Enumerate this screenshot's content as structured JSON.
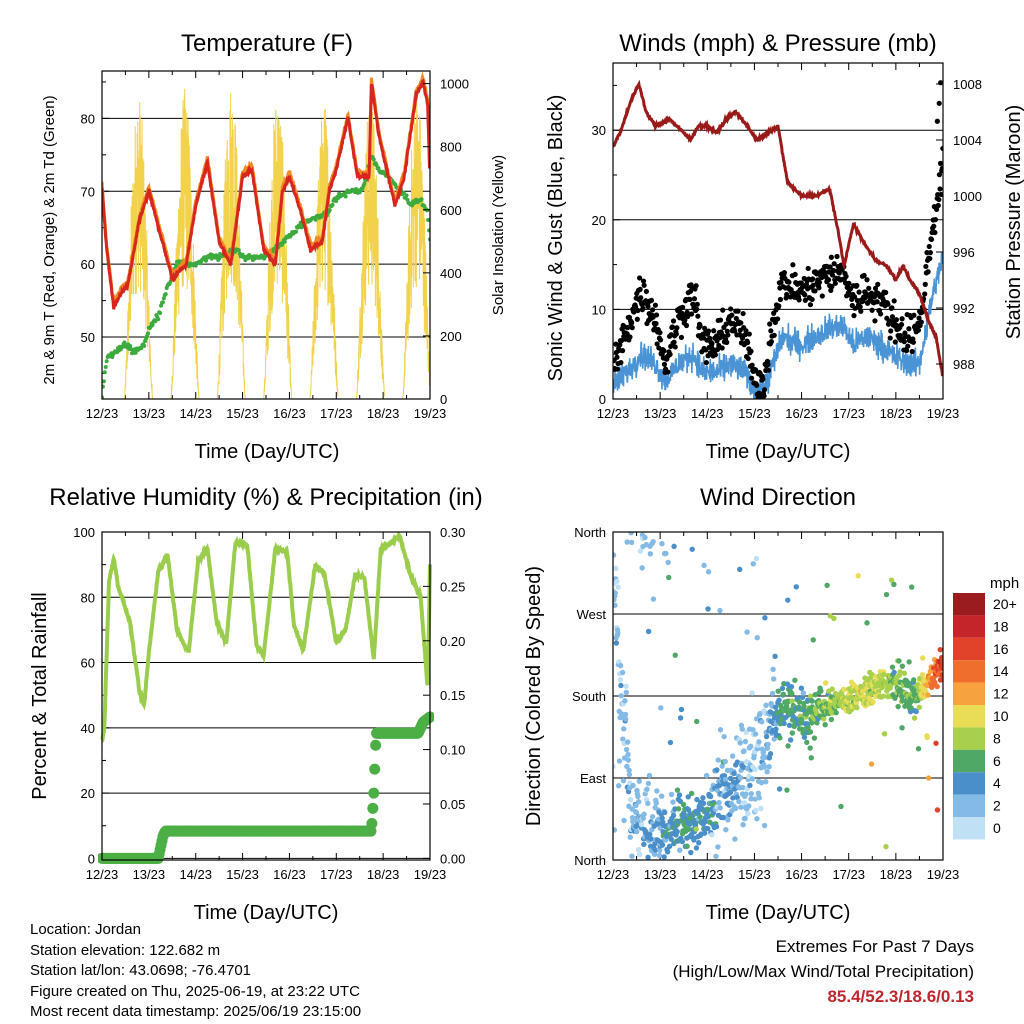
{
  "colors": {
    "temp_2m": "#d7261e",
    "temp_9m": "#f08a24",
    "dewpoint": "#3daa3d",
    "solar": "#f2d24a",
    "wind": "#4a93d4",
    "gust": "#000000",
    "pressure": "#9a1a1a",
    "rh": "#9acd4c",
    "precip": "#4caf45",
    "extremes": "#c0262d"
  },
  "x_tick_labels": [
    "12/23",
    "13/23",
    "14/23",
    "15/23",
    "16/23",
    "17/23",
    "18/23",
    "19/23"
  ],
  "x_label": "Time (Day/UTC)",
  "info": {
    "location": "Location: Jordan",
    "elevation": "Station elevation: 122.682 m",
    "latlon": "Station lat/lon: 43.0698; -76.4701",
    "created": "Figure created on Thu, 2025-06-19, at 23:22 UTC",
    "recent": "Most recent data timestamp: 2025/06/19 23:15:00"
  },
  "extremes": {
    "title": "Extremes For Past 7 Days",
    "subtitle": "(High/Low/Max Wind/Total Precipitation)",
    "values": "85.4/52.3/18.6/0.13"
  },
  "chart_data": [
    {
      "type": "line",
      "title": "Temperature (F)",
      "xlabel": "Time (Day/UTC)",
      "ylabel": "2m & 9m T (Red, Orange) & 2m Td (Green)",
      "y2label": "Solar Insolation (Yellow)",
      "xlim": [
        12,
        19
      ],
      "ylim": [
        41.5,
        86.5
      ],
      "yticks": [
        50,
        60,
        70,
        80
      ],
      "y2lim": [
        0,
        1040
      ],
      "y2ticks": [
        0,
        200,
        400,
        600,
        800,
        1000
      ],
      "grid": true,
      "series": [
        {
          "key": "temp",
          "x": [
            12.0,
            12.1,
            12.25,
            12.4,
            12.55,
            12.8,
            13.0,
            13.25,
            13.5,
            13.8,
            14.0,
            14.25,
            14.5,
            14.75,
            15.0,
            15.2,
            15.45,
            15.7,
            15.85,
            16.0,
            16.25,
            16.45,
            16.7,
            16.85,
            17.0,
            17.25,
            17.45,
            17.7,
            17.75,
            17.9,
            18.0,
            18.25,
            18.45,
            18.7,
            18.85,
            18.95,
            19.0
          ],
          "y": [
            70.5,
            62,
            54,
            56,
            57,
            66,
            70,
            64,
            58,
            60,
            68,
            74,
            63,
            60,
            72,
            73,
            62,
            60,
            70,
            72,
            67,
            62,
            63,
            70,
            73,
            80,
            72,
            72,
            85,
            78,
            75,
            68,
            72,
            83,
            85,
            82,
            71
          ]
        },
        {
          "key": "dewpoint",
          "x": [
            12.0,
            12.1,
            12.3,
            12.5,
            12.7,
            12.9,
            13.0,
            13.2,
            13.4,
            13.6,
            14.0,
            14.3,
            14.5,
            14.9,
            15.0,
            15.4,
            15.7,
            16.0,
            16.4,
            16.8,
            17.0,
            17.3,
            17.5,
            17.6,
            17.75,
            17.9,
            18.1,
            18.4,
            18.6,
            18.8,
            18.95,
            19.0
          ],
          "y": [
            42,
            47,
            48,
            49,
            48,
            49,
            51,
            53,
            57,
            60,
            60,
            61,
            61,
            62,
            61,
            61,
            62,
            64,
            66,
            67,
            69,
            70,
            70,
            71,
            75,
            73,
            72,
            70,
            68,
            69,
            67,
            63
          ]
        },
        {
          "key": "solar",
          "peaks_x": [
            12.78,
            13.77,
            14.76,
            15.75,
            16.74,
            17.73,
            18.72
          ],
          "peaks_y": [
            980,
            990,
            1030,
            1000,
            950,
            980,
            1000
          ]
        }
      ]
    },
    {
      "type": "scatter",
      "title": "Winds (mph) & Pressure (mb)",
      "xlabel": "Time (Day/UTC)",
      "ylabel": "Sonic Wind & Gust (Blue, Black)",
      "y2label": "Station Pressure (Maroon)",
      "xlim": [
        12,
        19
      ],
      "ylim": [
        0,
        37.5
      ],
      "yticks": [
        0,
        10,
        20,
        30
      ],
      "y2lim": [
        985.5,
        1009.5
      ],
      "y2ticks": [
        988,
        992,
        996,
        1000,
        1004,
        1008
      ],
      "grid": true,
      "series": [
        {
          "key": "pressure",
          "x": [
            12.0,
            12.15,
            12.4,
            12.55,
            12.7,
            12.9,
            13.2,
            13.5,
            13.65,
            13.8,
            14.0,
            14.2,
            14.4,
            14.6,
            14.85,
            15.05,
            15.3,
            15.5,
            15.7,
            16.0,
            16.3,
            16.6,
            16.8,
            16.9,
            17.1,
            17.35,
            17.55,
            17.8,
            18.0,
            18.15,
            18.3,
            18.5,
            18.7,
            18.85,
            19.0
          ],
          "y": [
            1003.5,
            1004.5,
            1007,
            1008,
            1006,
            1005,
            1005.5,
            1004.5,
            1004,
            1005,
            1005,
            1004.5,
            1005.5,
            1006,
            1005,
            1004,
            1004.5,
            1005,
            1001,
            1000,
            1000,
            1000.5,
            997,
            995,
            998,
            996.5,
            995.5,
            995,
            994,
            995,
            994,
            993,
            991,
            990,
            987
          ]
        },
        {
          "key": "wind",
          "x": [
            12.0,
            12.3,
            12.6,
            12.9,
            13.1,
            13.4,
            13.7,
            13.9,
            14.2,
            14.5,
            14.8,
            15.0,
            15.2,
            15.4,
            15.6,
            16.0,
            16.3,
            16.6,
            16.9,
            17.1,
            17.4,
            17.7,
            17.9,
            18.2,
            18.5,
            18.8,
            19.0
          ],
          "y": [
            1.5,
            3,
            5,
            4,
            2,
            4,
            5,
            3,
            3,
            4,
            3,
            1,
            1,
            4,
            7,
            6,
            7,
            8,
            8,
            6,
            7,
            6,
            5,
            4,
            4,
            12,
            16
          ]
        },
        {
          "key": "gust",
          "x": [
            12.0,
            12.3,
            12.6,
            12.9,
            13.1,
            13.4,
            13.7,
            13.9,
            14.2,
            14.5,
            14.8,
            15.0,
            15.2,
            15.4,
            15.6,
            16.0,
            16.3,
            16.6,
            16.9,
            17.1,
            17.4,
            17.7,
            17.9,
            18.2,
            18.5,
            18.8,
            19.0
          ],
          "y": [
            3,
            8,
            12,
            9,
            4,
            9,
            12,
            6,
            6,
            9,
            7,
            2,
            2,
            9,
            13,
            12,
            13,
            14,
            14,
            11,
            12,
            11,
            9,
            7,
            8,
            20,
            26
          ]
        }
      ]
    },
    {
      "type": "line",
      "title": "Relative Humidity (%) & Precipitation (in)",
      "xlabel": "Time (Day/UTC)",
      "ylabel": "Percent & Total Rainfall",
      "xlim": [
        12,
        19
      ],
      "ylim": [
        -0.5,
        100
      ],
      "yticks": [
        0,
        20,
        40,
        60,
        80,
        100
      ],
      "y2lim": [
        -0.0015,
        0.3
      ],
      "y2ticks": [
        0.0,
        0.05,
        0.1,
        0.15,
        0.2,
        0.25,
        0.3
      ],
      "grid": true,
      "series": [
        {
          "key": "rh",
          "x": [
            12.0,
            12.05,
            12.15,
            12.25,
            12.35,
            12.45,
            12.6,
            12.8,
            12.9,
            13.0,
            13.2,
            13.4,
            13.6,
            13.85,
            14.05,
            14.25,
            14.45,
            14.65,
            14.85,
            15.1,
            15.3,
            15.45,
            15.7,
            15.95,
            16.1,
            16.3,
            16.55,
            16.75,
            17.0,
            17.2,
            17.4,
            17.6,
            17.8,
            17.95,
            18.2,
            18.35,
            18.6,
            18.8,
            18.95,
            19.0
          ],
          "y": [
            36,
            40,
            85,
            92,
            83,
            79,
            72,
            51,
            47,
            63,
            88,
            93,
            70,
            63,
            91,
            95,
            72,
            66,
            97,
            96,
            65,
            62,
            95,
            94,
            71,
            64,
            90,
            87,
            66,
            70,
            87,
            86,
            61,
            95,
            97,
            99,
            86,
            80,
            52,
            90
          ]
        },
        {
          "key": "precip",
          "x": [
            12.0,
            13.2,
            13.3,
            13.35,
            17.75,
            17.8,
            17.85,
            18.75,
            18.8,
            18.85,
            19.0
          ],
          "y": [
            0.0,
            0.0,
            0.02,
            0.025,
            0.025,
            0.06,
            0.115,
            0.115,
            0.12,
            0.125,
            0.13
          ]
        }
      ]
    },
    {
      "type": "scatter",
      "title": "Wind Direction",
      "xlabel": "Time (Day/UTC)",
      "ylabel": "Direction (Colored By Speed)",
      "xlim": [
        12,
        19
      ],
      "ylim": [
        0,
        360
      ],
      "ytick_labels": [
        "North",
        "East",
        "South",
        "West",
        "North"
      ],
      "yticks": [
        0,
        90,
        180,
        270,
        360
      ],
      "grid": true,
      "legend": {
        "title": "mph",
        "labels": [
          "20+",
          "18",
          "16",
          "14",
          "12",
          "10",
          "8",
          "6",
          "4",
          "2",
          "0"
        ],
        "colors": [
          "#9b1c1f",
          "#c4252b",
          "#e0432a",
          "#ef6e2e",
          "#f6a23f",
          "#e9dd57",
          "#a9d04c",
          "#4fa866",
          "#4a8fc9",
          "#84bbe6",
          "#bfe0f5"
        ],
        "position": "right"
      },
      "trend_x": [
        12.0,
        12.4,
        12.8,
        13.2,
        13.6,
        14.0,
        14.3,
        14.6,
        15.0,
        15.4,
        15.6,
        16.0,
        16.4,
        16.8,
        17.2,
        17.6,
        18.0,
        18.4,
        18.8,
        19.0
      ],
      "trend_y": [
        320,
        40,
        35,
        30,
        40,
        50,
        70,
        80,
        100,
        150,
        170,
        160,
        165,
        175,
        180,
        190,
        190,
        180,
        200,
        215
      ],
      "trend_speed": [
        1,
        2,
        3,
        4,
        5,
        4,
        3,
        3,
        1,
        3,
        6,
        5,
        7,
        8,
        9,
        9,
        7,
        6,
        14,
        16
      ]
    }
  ]
}
